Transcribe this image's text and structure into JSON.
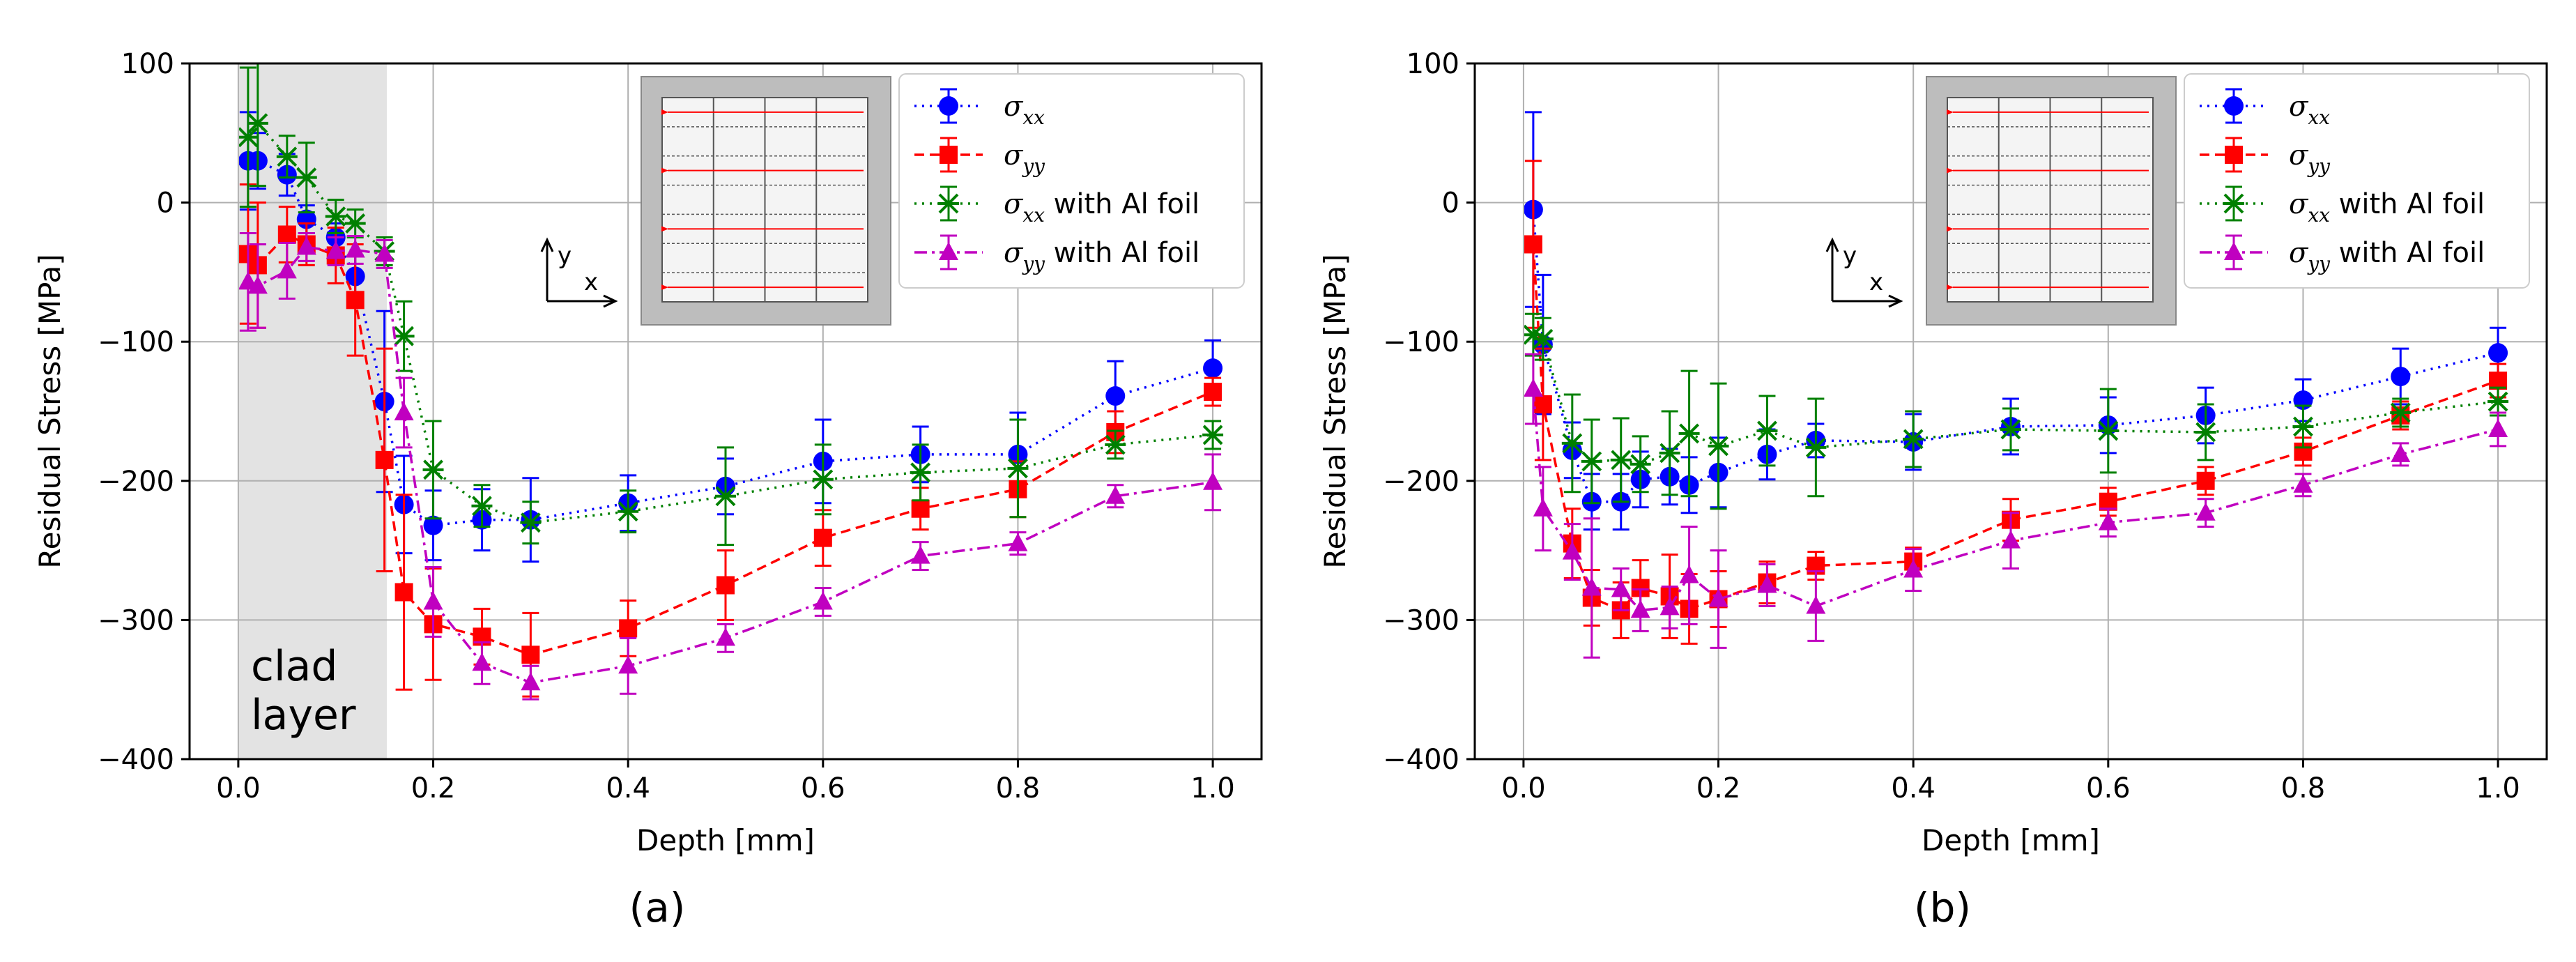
{
  "colors": {
    "sigma_xx": "#0000ff",
    "sigma_yy": "#ff0000",
    "sigma_xx_foil": "#008000",
    "sigma_yy_foil": "#c000c0",
    "grid": "#b0b0b0",
    "clad_shade": "#e3e3e3",
    "inset_frame": "#bdbdbd",
    "inset_arrow": "#ff0000"
  },
  "chart_data": [
    {
      "type": "line",
      "panel_label": "(a)",
      "xlabel": "Depth [mm]",
      "ylabel": "Residual Stress [MPa]",
      "xlim": [
        -0.05,
        1.05
      ],
      "ylim": [
        -400,
        100
      ],
      "xticks": [
        "0.0",
        "0.2",
        "0.4",
        "0.6",
        "0.8",
        "1.0"
      ],
      "yticks": [
        "100",
        "0",
        "−100",
        "−200",
        "−300",
        "−400"
      ],
      "grid": true,
      "legend_position": "top-right",
      "annotation": [
        "clad",
        "layer"
      ],
      "shaded_region": [
        0,
        0.15
      ],
      "axis_indicator": {
        "y": "y",
        "x": "x"
      },
      "series": [
        {
          "key": "sxx",
          "name": "σxx",
          "symbol": "σ",
          "sub": "xx",
          "suffix": "",
          "marker": "circle",
          "dash": "dotted",
          "color_key": "sigma_xx",
          "x": [
            0.01,
            0.02,
            0.05,
            0.07,
            0.1,
            0.12,
            0.15,
            0.17,
            0.2,
            0.25,
            0.3,
            0.4,
            0.5,
            0.6,
            0.7,
            0.8,
            0.9,
            1.0
          ],
          "y": [
            30,
            30,
            20,
            -12,
            -25,
            -53,
            -143,
            -217,
            -232,
            -228,
            -228,
            -216,
            -204,
            -186,
            -181,
            -181,
            -139,
            -119
          ],
          "err": [
            35,
            20,
            15,
            10,
            10,
            15,
            65,
            35,
            25,
            22,
            30,
            20,
            20,
            30,
            20,
            30,
            25,
            20
          ]
        },
        {
          "key": "syy",
          "name": "σyy",
          "symbol": "σ",
          "sub": "yy",
          "suffix": "",
          "marker": "square",
          "dash": "dashed",
          "color_key": "sigma_yy",
          "x": [
            0.01,
            0.02,
            0.05,
            0.07,
            0.1,
            0.12,
            0.15,
            0.17,
            0.2,
            0.25,
            0.3,
            0.4,
            0.5,
            0.6,
            0.7,
            0.8,
            0.9,
            1.0
          ],
          "y": [
            -37,
            -45,
            -23,
            -30,
            -38,
            -70,
            -185,
            -280,
            -303,
            -312,
            -325,
            -306,
            -275,
            -241,
            -220,
            -206,
            -165,
            -136
          ],
          "err": [
            50,
            45,
            20,
            15,
            20,
            40,
            80,
            70,
            40,
            20,
            30,
            20,
            25,
            20,
            15,
            20,
            15,
            10
          ]
        },
        {
          "key": "sxx_foil",
          "name": "σxx with Al foil",
          "symbol": "σ",
          "sub": "xx",
          "suffix": " with Al foil",
          "marker": "x-star",
          "dash": "dotted",
          "color_key": "sigma_xx_foil",
          "x": [
            0.01,
            0.02,
            0.05,
            0.07,
            0.1,
            0.12,
            0.15,
            0.17,
            0.2,
            0.25,
            0.3,
            0.4,
            0.5,
            0.6,
            0.7,
            0.8,
            0.9,
            1.0
          ],
          "y": [
            47,
            57,
            33,
            18,
            -10,
            -15,
            -35,
            -96,
            -192,
            -218,
            -230,
            -222,
            -211,
            -199,
            -194,
            -191,
            -174,
            -167
          ],
          "err": [
            50,
            45,
            15,
            25,
            12,
            10,
            10,
            25,
            35,
            15,
            15,
            15,
            35,
            25,
            20,
            35,
            10,
            10
          ]
        },
        {
          "key": "syy_foil",
          "name": "σyy with Al foil",
          "symbol": "σ",
          "sub": "yy",
          "suffix": " with Al foil",
          "marker": "triangle",
          "dash": "dashdot",
          "color_key": "sigma_yy_foil",
          "x": [
            0.01,
            0.02,
            0.05,
            0.07,
            0.1,
            0.12,
            0.15,
            0.17,
            0.2,
            0.25,
            0.3,
            0.4,
            0.5,
            0.6,
            0.7,
            0.8,
            0.9,
            1.0
          ],
          "y": [
            -57,
            -60,
            -49,
            -32,
            -35,
            -34,
            -37,
            -151,
            -287,
            -331,
            -345,
            -333,
            -313,
            -287,
            -254,
            -245,
            -211,
            -201
          ],
          "err": [
            35,
            30,
            20,
            10,
            10,
            10,
            10,
            25,
            25,
            15,
            12,
            20,
            10,
            10,
            10,
            8,
            8,
            20
          ]
        }
      ]
    },
    {
      "type": "line",
      "panel_label": "(b)",
      "xlabel": "Depth [mm]",
      "ylabel": "Residual Stress [MPa]",
      "xlim": [
        -0.05,
        1.05
      ],
      "ylim": [
        -400,
        100
      ],
      "xticks": [
        "0.0",
        "0.2",
        "0.4",
        "0.6",
        "0.8",
        "1.0"
      ],
      "yticks": [
        "100",
        "0",
        "−100",
        "−200",
        "−300",
        "−400"
      ],
      "grid": true,
      "legend_position": "top-right",
      "axis_indicator": {
        "y": "y",
        "x": "x"
      },
      "series": [
        {
          "key": "sxx",
          "name": "σxx",
          "symbol": "σ",
          "sub": "xx",
          "suffix": "",
          "marker": "circle",
          "dash": "dotted",
          "color_key": "sigma_xx",
          "x": [
            0.01,
            0.02,
            0.05,
            0.07,
            0.1,
            0.12,
            0.15,
            0.17,
            0.2,
            0.25,
            0.3,
            0.4,
            0.5,
            0.6,
            0.7,
            0.8,
            0.9,
            1.0
          ],
          "y": [
            -5,
            -102,
            -178,
            -215,
            -215,
            -199,
            -197,
            -203,
            -194,
            -181,
            -171,
            -172,
            -161,
            -160,
            -153,
            -142,
            -125,
            -108
          ],
          "err": [
            70,
            50,
            20,
            20,
            20,
            20,
            20,
            20,
            25,
            18,
            12,
            20,
            20,
            20,
            20,
            15,
            20,
            18
          ]
        },
        {
          "key": "syy",
          "name": "σyy",
          "symbol": "σ",
          "sub": "yy",
          "suffix": "",
          "marker": "square",
          "dash": "dashed",
          "color_key": "sigma_yy",
          "x": [
            0.01,
            0.02,
            0.05,
            0.07,
            0.1,
            0.12,
            0.15,
            0.17,
            0.2,
            0.25,
            0.3,
            0.4,
            0.5,
            0.6,
            0.7,
            0.8,
            0.9,
            1.0
          ],
          "y": [
            -30,
            -145,
            -245,
            -284,
            -293,
            -277,
            -283,
            -292,
            -285,
            -273,
            -261,
            -258,
            -228,
            -215,
            -200,
            -179,
            -153,
            -128
          ],
          "err": [
            60,
            40,
            25,
            20,
            20,
            20,
            30,
            25,
            20,
            15,
            10,
            10,
            15,
            10,
            10,
            10,
            10,
            12
          ]
        },
        {
          "key": "sxx_foil",
          "name": "σxx with Al foil",
          "symbol": "σ",
          "sub": "xx",
          "suffix": " with Al foil",
          "marker": "x-star",
          "dash": "dotted",
          "color_key": "sigma_xx_foil",
          "x": [
            0.01,
            0.02,
            0.05,
            0.07,
            0.1,
            0.12,
            0.15,
            0.17,
            0.2,
            0.25,
            0.3,
            0.4,
            0.5,
            0.6,
            0.7,
            0.8,
            0.9,
            1.0
          ],
          "y": [
            -95,
            -98,
            -173,
            -186,
            -185,
            -188,
            -180,
            -166,
            -175,
            -164,
            -176,
            -170,
            -163,
            -164,
            -165,
            -161,
            -151,
            -143
          ],
          "err": [
            15,
            15,
            35,
            30,
            30,
            20,
            30,
            45,
            45,
            25,
            35,
            20,
            15,
            30,
            20,
            15,
            10,
            10
          ]
        },
        {
          "key": "syy_foil",
          "name": "σyy with Al foil",
          "symbol": "σ",
          "sub": "yy",
          "suffix": " with Al foil",
          "marker": "triangle",
          "dash": "dashdot",
          "color_key": "sigma_yy_foil",
          "x": [
            0.01,
            0.02,
            0.05,
            0.07,
            0.1,
            0.12,
            0.15,
            0.17,
            0.2,
            0.25,
            0.3,
            0.4,
            0.5,
            0.6,
            0.7,
            0.8,
            0.9,
            1.0
          ],
          "y": [
            -134,
            -220,
            -251,
            -277,
            -278,
            -293,
            -291,
            -268,
            -285,
            -275,
            -290,
            -264,
            -243,
            -230,
            -223,
            -203,
            -181,
            -163
          ],
          "err": [
            25,
            30,
            20,
            50,
            15,
            15,
            15,
            35,
            35,
            15,
            25,
            15,
            20,
            10,
            10,
            8,
            8,
            12
          ]
        }
      ]
    }
  ]
}
